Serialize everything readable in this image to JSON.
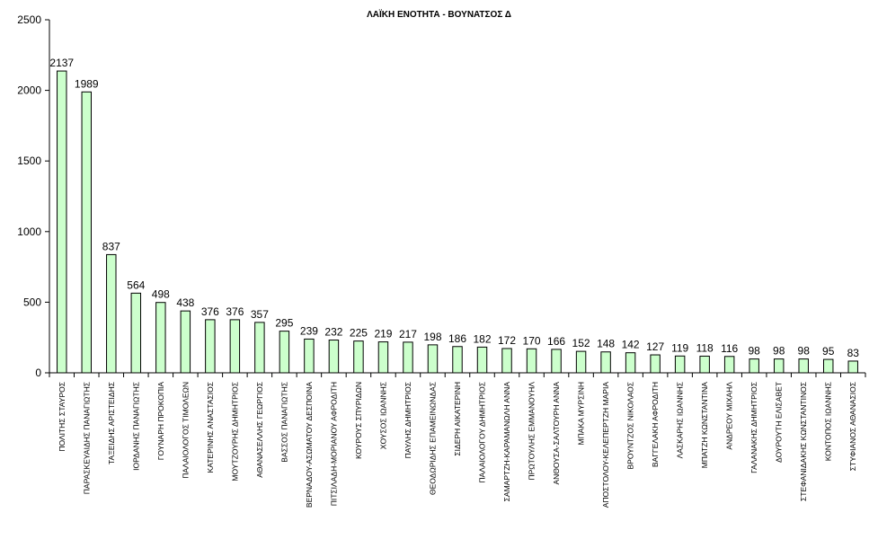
{
  "chart_data": {
    "type": "bar",
    "title": "ΛΑΪΚΗ ΕΝΟΤΗΤΑ - ΒΟΥΝΑΤΣΟΣ Δ",
    "xlabel": "",
    "ylabel": "",
    "ylim": [
      0,
      2500
    ],
    "yticks": [
      0,
      500,
      1000,
      1500,
      2000,
      2500
    ],
    "grid": false,
    "legend": "none",
    "bar_color": "#ccffcc",
    "bar_edge_color": "#000000",
    "categories": [
      "ΠΟΛΙΤΗΣ ΣΤΑΥΡΟΣ",
      "ΠΑΡΑΣΚΕΥΑΙΔΗΣ ΠΑΝΑΓΙΩΤΗΣ",
      "ΤΑΞΕΙΔΗΣ ΑΡΙΣΤΕΙΔΗΣ",
      "ΙΟΡΔΑΝΗΣ ΠΑΝΑΓΙΩΤΗΣ",
      "ΓΟΥΝΑΡΗ ΠΡΟΚΟΠΙΑ",
      "ΠΑΛΑΙΟΛΟΓΟΣ ΤΙΜΟΛΕΩΝ",
      "ΚΑΤΕΡΙΝΗΣ ΑΝΑΣΤΑΣΙΟΣ",
      "ΜΟΥΤΖΟΥΡΗΣ ΔΗΜΗΤΡΙΟΣ",
      "ΑΘΑΝΑΣΕΛΛΗΣ ΓΕΩΡΓΙΟΣ",
      "ΒΑΣΣΟΣ ΠΑΝΑΓΙΩΤΗΣ",
      "ΒΕΡΝΑΔΟΥ-ΑΣΩΜΑΤΟΥ ΔΕΣΠΟΙΝΑ",
      "ΠΙΤΣΙΛΑΔΗ-ΜΟΡΙΑΝΟΥ ΑΦΡΟΔΙΤΗ",
      "ΚΟΥΡΟΥΣ ΣΠΥΡΙΔΩΝ",
      "ΧΟΥΣΟΣ ΙΩΑΝΝΗΣ",
      "ΠΑΥΛΗΣ ΔΗΜΗΤΡΙΟΣ",
      "ΘΕΟΔΩΡΙΔΗΣ ΕΠΑΜΕΙΝΩΝΔΑΣ",
      "ΣΙΔΕΡΗ ΑΙΚΑΤΕΡΙΝΗ",
      "ΠΑΛΑΙΟΛΟΓΟΥ ΔΗΜΗΤΡΙΟΣ",
      "ΣΑΜΑΡΤΖΗ-ΚΑΡΑΜΑΝΩΛΗ ΑΝΝΑ",
      "ΠΡΩΤΟΥΛΗΣ ΕΜΜΑΝΟΥΗΛ",
      "ΑΝΘΟΥΣΑ-ΣΑΛΤΟΥΡΗ ΑΝΝΑ",
      "ΜΠΑΚΑ ΜΥΡΣΙΝΗ",
      "ΑΠΟΣΤΟΛΟΥ-ΚΕΛΕΠΕΡΤΖΗ ΜΑΡΙΑ",
      "ΒΡΟΥΝΤΖΟΣ ΝΙΚΟΛΑΟΣ",
      "ΒΑΓΓΕΛΑΚΗ ΑΦΡΟΔΙΤΗ",
      "ΛΑΣΚΑΡΗΣ ΙΩΑΝΝΗΣ",
      "ΜΠΑΤΖΗ ΚΩΝΣΤΑΝΤΙΝΑ",
      "ΑΝΔΡΕΟΥ ΜΙΧΑΗΛ",
      "ΓΑΛΑΝΑΚΗΣ ΔΗΜΗΤΡΙΟΣ",
      "ΔΟΥΡΟΥΤΗ ΕΛΙΣΑΒΕΤ",
      "ΣΤΕΦΑΝΙΔΑΚΗΣ ΚΩΝΣΤΑΝΤΙΝΟΣ",
      "ΚΟΝΤΟΠΟΣ ΙΩΑΝΝΗΣ",
      "ΣΤΥΦΙΑΝΟΣ ΑΘΑΝΑΣΙΟΣ"
    ],
    "values": [
      2137,
      1989,
      837,
      564,
      498,
      438,
      376,
      376,
      357,
      295,
      239,
      232,
      225,
      219,
      217,
      198,
      186,
      182,
      172,
      170,
      166,
      152,
      148,
      142,
      127,
      119,
      118,
      116,
      98,
      98,
      98,
      95,
      83
    ]
  }
}
